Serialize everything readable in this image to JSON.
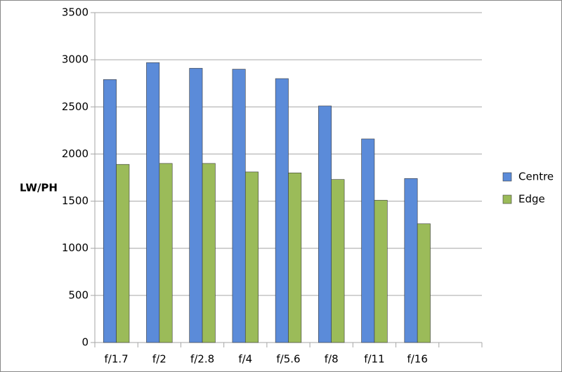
{
  "chart_data": {
    "type": "bar",
    "y_label": "LW/PH",
    "categories": [
      "f/1.7",
      "f/2",
      "f/2.8",
      "f/4",
      "f/5.6",
      "f/8",
      "f/11",
      "f/16",
      null
    ],
    "series": [
      {
        "name": "Centre",
        "color": "#5b8bd9",
        "values": [
          2790,
          2970,
          2910,
          2900,
          2800,
          2510,
          2160,
          1740,
          null
        ]
      },
      {
        "name": "Edge",
        "color": "#9bbb59",
        "values": [
          1890,
          1900,
          1900,
          1810,
          1800,
          1730,
          1510,
          1260,
          null
        ]
      }
    ],
    "ylim": [
      0,
      3500
    ],
    "yticks": [
      0,
      500,
      1000,
      1500,
      2000,
      2500,
      3000,
      3500
    ],
    "grid": true,
    "legend": "right"
  }
}
